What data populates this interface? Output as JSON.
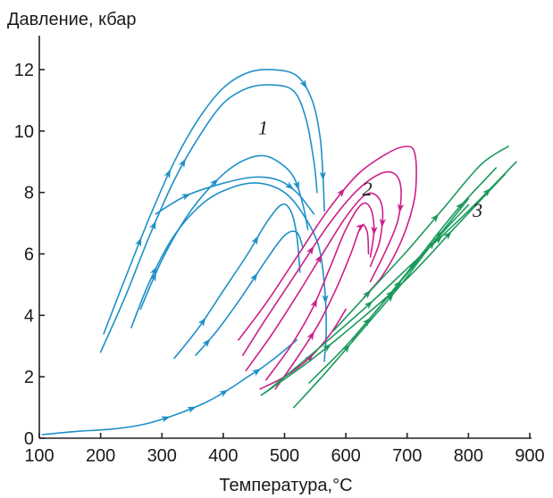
{
  "chart_data": {
    "type": "line",
    "title": "",
    "ylabel": "Давление, кбар",
    "xlabel": "Температура,°C",
    "xlim": [
      100,
      900
    ],
    "ylim": [
      0,
      13
    ],
    "xticks": [
      100,
      200,
      300,
      400,
      500,
      600,
      700,
      800,
      900
    ],
    "yticks": [
      0,
      2,
      4,
      6,
      8,
      10,
      12
    ],
    "grid": false,
    "colors": {
      "1": "#1e90c8",
      "2": "#cc1f8a",
      "3": "#1a9a5c",
      "axis": "#222222"
    },
    "curve_labels": [
      {
        "text": "1",
        "x": 465,
        "y": 9.9,
        "color": "1"
      },
      {
        "text": "2",
        "x": 635,
        "y": 7.9,
        "color": "2"
      },
      {
        "text": "3",
        "x": 815,
        "y": 7.2,
        "color": "3"
      }
    ],
    "series": [
      {
        "group": "1",
        "points": [
          [
            105,
            0.12
          ],
          [
            160,
            0.22
          ],
          [
            220,
            0.3
          ],
          [
            270,
            0.45
          ],
          [
            320,
            0.75
          ],
          [
            370,
            1.15
          ],
          [
            410,
            1.6
          ],
          [
            440,
            2.0
          ],
          [
            460,
            2.25
          ],
          [
            490,
            2.7
          ],
          [
            520,
            3.2
          ]
        ],
        "arrows": [
          0.45,
          0.55,
          0.68,
          0.82
        ]
      },
      {
        "group": "1",
        "points": [
          [
            205,
            3.4
          ],
          [
            240,
            5.2
          ],
          [
            280,
            7.2
          ],
          [
            320,
            9.0
          ],
          [
            360,
            10.4
          ],
          [
            400,
            11.4
          ],
          [
            440,
            11.9
          ],
          [
            480,
            12.0
          ],
          [
            520,
            11.8
          ],
          [
            545,
            11.0
          ],
          [
            558,
            9.8
          ],
          [
            563,
            8.4
          ],
          [
            565,
            7.4
          ]
        ],
        "arrows": [
          0.2,
          0.35,
          0.74,
          0.93
        ]
      },
      {
        "group": "1",
        "points": [
          [
            200,
            2.8
          ],
          [
            240,
            4.6
          ],
          [
            280,
            6.6
          ],
          [
            320,
            8.4
          ],
          [
            360,
            9.8
          ],
          [
            400,
            10.9
          ],
          [
            440,
            11.4
          ],
          [
            480,
            11.5
          ],
          [
            515,
            11.3
          ],
          [
            535,
            10.4
          ],
          [
            548,
            9.0
          ],
          [
            553,
            8.0
          ]
        ],
        "arrows": [
          0.3,
          0.45
        ]
      },
      {
        "group": "1",
        "points": [
          [
            265,
            4.2
          ],
          [
            300,
            5.8
          ],
          [
            340,
            7.2
          ],
          [
            380,
            8.2
          ],
          [
            420,
            8.9
          ],
          [
            460,
            9.2
          ],
          [
            490,
            9.0
          ],
          [
            515,
            8.5
          ],
          [
            530,
            7.6
          ],
          [
            538,
            6.8
          ]
        ],
        "arrows": [
          0.12,
          0.5,
          0.85
        ]
      },
      {
        "group": "1",
        "points": [
          [
            290,
            7.3
          ],
          [
            340,
            7.9
          ],
          [
            400,
            8.3
          ],
          [
            450,
            8.5
          ],
          [
            490,
            8.4
          ],
          [
            520,
            8.0
          ],
          [
            548,
            7.3
          ]
        ],
        "arrows": [
          0.2,
          0.8
        ]
      },
      {
        "group": "1",
        "points": [
          [
            250,
            3.6
          ],
          [
            280,
            5.1
          ],
          [
            320,
            6.6
          ],
          [
            370,
            7.7
          ],
          [
            420,
            8.2
          ],
          [
            460,
            8.3
          ],
          [
            500,
            8.0
          ],
          [
            530,
            7.3
          ],
          [
            555,
            6.3
          ],
          [
            565,
            5.0
          ],
          [
            568,
            3.6
          ],
          [
            565,
            2.5
          ]
        ],
        "arrows": [
          0.15,
          0.85
        ]
      },
      {
        "group": "1",
        "points": [
          [
            320,
            2.6
          ],
          [
            360,
            3.6
          ],
          [
            400,
            4.8
          ],
          [
            440,
            6.0
          ],
          [
            470,
            7.0
          ],
          [
            495,
            7.6
          ],
          [
            510,
            7.4
          ],
          [
            520,
            6.6
          ],
          [
            525,
            5.4
          ]
        ],
        "arrows": [
          0.18,
          0.55
        ]
      },
      {
        "group": "1",
        "points": [
          [
            355,
            2.7
          ],
          [
            390,
            3.5
          ],
          [
            430,
            4.6
          ],
          [
            470,
            5.8
          ],
          [
            500,
            6.6
          ],
          [
            520,
            6.7
          ],
          [
            530,
            6.2
          ]
        ],
        "arrows": [
          0.1,
          0.55
        ]
      },
      {
        "group": "2",
        "points": [
          [
            425,
            3.2
          ],
          [
            470,
            4.4
          ],
          [
            520,
            5.9
          ],
          [
            570,
            7.4
          ],
          [
            620,
            8.6
          ],
          [
            670,
            9.3
          ],
          [
            700,
            9.5
          ],
          [
            712,
            9.3
          ],
          [
            715,
            8.5
          ],
          [
            710,
            7.6
          ],
          [
            690,
            6.4
          ],
          [
            660,
            5.3
          ],
          [
            630,
            4.6
          ]
        ],
        "arrows": [
          0.42
        ]
      },
      {
        "group": "2",
        "points": [
          [
            432,
            2.7
          ],
          [
            470,
            3.9
          ],
          [
            520,
            5.4
          ],
          [
            570,
            6.9
          ],
          [
            615,
            8.0
          ],
          [
            655,
            8.6
          ],
          [
            680,
            8.6
          ],
          [
            690,
            8.1
          ],
          [
            685,
            7.1
          ],
          [
            665,
            6.1
          ],
          [
            640,
            5.1
          ]
        ],
        "arrows": [
          0.35,
          0.78
        ]
      },
      {
        "group": "2",
        "points": [
          [
            437,
            2.2
          ],
          [
            480,
            3.4
          ],
          [
            525,
            4.8
          ],
          [
            565,
            6.1
          ],
          [
            600,
            7.2
          ],
          [
            630,
            7.9
          ],
          [
            650,
            7.9
          ],
          [
            660,
            7.4
          ],
          [
            655,
            6.4
          ],
          [
            640,
            5.6
          ]
        ],
        "arrows": [
          0.45,
          0.85
        ]
      },
      {
        "group": "2",
        "points": [
          [
            470,
            1.9
          ],
          [
            510,
            3.0
          ],
          [
            545,
            4.2
          ],
          [
            575,
            5.6
          ],
          [
            600,
            6.8
          ],
          [
            625,
            7.6
          ],
          [
            640,
            7.5
          ],
          [
            646,
            6.8
          ],
          [
            640,
            5.9
          ]
        ],
        "arrows": [
          0.35,
          0.9
        ]
      },
      {
        "group": "2",
        "points": [
          [
            485,
            1.6
          ],
          [
            520,
            2.6
          ],
          [
            555,
            3.7
          ],
          [
            585,
            4.9
          ],
          [
            608,
            6.0
          ],
          [
            625,
            6.9
          ],
          [
            635,
            6.7
          ],
          [
            637,
            6.0
          ]
        ],
        "arrows": [
          0.3,
          0.85
        ]
      },
      {
        "group": "2",
        "points": [
          [
            460,
            1.6
          ],
          [
            500,
            2.0
          ],
          [
            540,
            2.6
          ],
          [
            575,
            3.4
          ],
          [
            600,
            4.2
          ]
        ],
        "arrows": [
          0.5
        ]
      },
      {
        "group": "3",
        "points": [
          [
            462,
            1.4
          ],
          [
            540,
            2.5
          ],
          [
            620,
            3.8
          ],
          [
            700,
            5.2
          ],
          [
            780,
            6.9
          ],
          [
            860,
            8.6
          ]
        ],
        "arrows": [
          0.25,
          0.5,
          0.75
        ]
      },
      {
        "group": "3",
        "points": [
          [
            470,
            1.5
          ],
          [
            560,
            3.0
          ],
          [
            640,
            4.4
          ],
          [
            720,
            5.9
          ],
          [
            800,
            7.4
          ],
          [
            878,
            9.0
          ]
        ],
        "arrows": [
          0.4,
          0.68,
          0.88
        ]
      },
      {
        "group": "3",
        "points": [
          [
            540,
            1.8
          ],
          [
            600,
            3.0
          ],
          [
            660,
            4.4
          ],
          [
            720,
            5.9
          ],
          [
            780,
            7.4
          ],
          [
            845,
            8.8
          ]
        ],
        "arrows": [
          0.3,
          0.55,
          0.82
        ]
      },
      {
        "group": "3",
        "points": [
          [
            580,
            3.5
          ],
          [
            640,
            4.8
          ],
          [
            700,
            6.1
          ],
          [
            760,
            7.5
          ],
          [
            820,
            8.9
          ],
          [
            865,
            9.5
          ]
        ],
        "arrows": [
          0.2,
          0.6
        ]
      },
      {
        "group": "3",
        "points": [
          [
            515,
            1.0
          ],
          [
            570,
            2.2
          ],
          [
            630,
            3.6
          ],
          [
            690,
            5.0
          ],
          [
            740,
            6.3
          ],
          [
            800,
            7.6
          ]
        ],
        "arrows": [
          0.3,
          0.55,
          0.8
        ]
      },
      {
        "group": "3",
        "points": [
          [
            610,
            3.2
          ],
          [
            660,
            4.4
          ],
          [
            710,
            5.6
          ],
          [
            760,
            6.8
          ],
          [
            800,
            7.8
          ]
        ],
        "arrows": [
          0.4,
          0.75
        ]
      }
    ]
  }
}
